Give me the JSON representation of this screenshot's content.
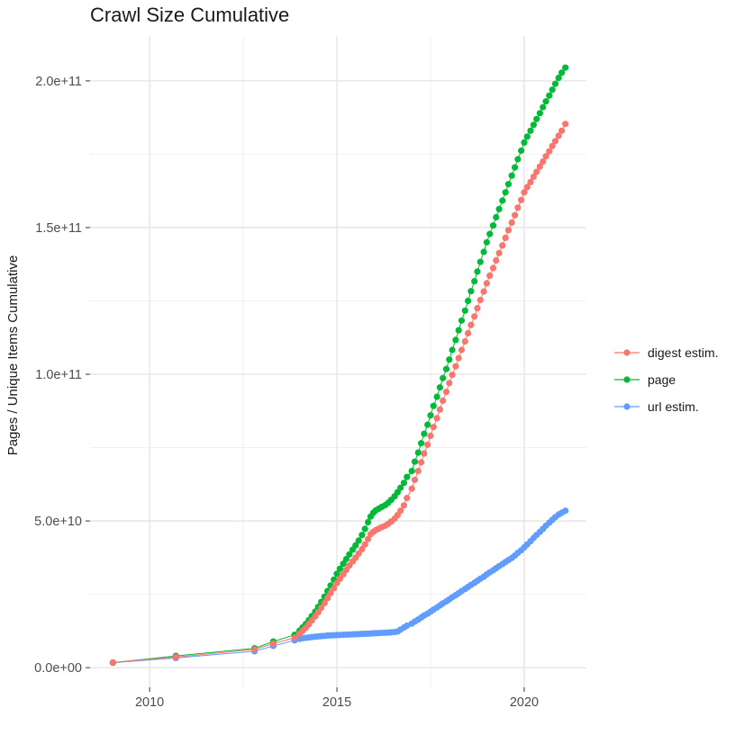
{
  "chart_data": {
    "type": "scatter",
    "title": "Crawl Size Cumulative",
    "xlabel": "",
    "ylabel": "Pages / Unique Items Cumulative",
    "x_unit": "year",
    "value_unit_note": "series point values are in billions (1e9); axis shows scientific notation",
    "xlim": [
      2008.41,
      2021.66
    ],
    "ylim_e9": [
      -6.7,
      215.3
    ],
    "grid": true,
    "background": "#FFFFFF",
    "grid_major_color": "#E4E4E4",
    "grid_minor_color": "#F0F0F0",
    "tick_color": "#333333",
    "axis_text_color": "#4D4D4D",
    "x_ticks": {
      "major": [
        2010,
        2015,
        2020
      ],
      "labels": [
        "2010",
        "2015",
        "2020"
      ],
      "minor": [
        2012.5,
        2017.5
      ]
    },
    "y_ticks": {
      "major_e9": [
        0,
        50,
        100,
        150,
        200
      ],
      "labels": [
        "0.0e+00",
        "5.0e+10",
        "1.0e+11",
        "1.5e+11",
        "2.0e+11"
      ],
      "minor_e9": [
        25,
        75,
        125,
        175
      ]
    },
    "legend": {
      "position": "right",
      "items": [
        {
          "label": "digest estim.",
          "color": "#F8766D"
        },
        {
          "label": "page",
          "color": "#00BA38"
        },
        {
          "label": "url estim.",
          "color": "#619CFF"
        }
      ]
    },
    "series": [
      {
        "name": "url estim.",
        "color": "#619CFF",
        "points": [
          [
            2009.02,
            1.7
          ],
          [
            2010.7,
            3.3
          ],
          [
            2012.8,
            5.6
          ],
          [
            2013.3,
            7.4
          ],
          [
            2013.87,
            9.3
          ],
          [
            2014.0,
            9.8
          ],
          [
            2014.08,
            10.0
          ],
          [
            2014.17,
            10.15
          ],
          [
            2014.25,
            10.3
          ],
          [
            2014.33,
            10.45
          ],
          [
            2014.42,
            10.55
          ],
          [
            2014.5,
            10.65
          ],
          [
            2014.58,
            10.75
          ],
          [
            2014.67,
            10.85
          ],
          [
            2014.75,
            10.95
          ],
          [
            2014.83,
            11.0
          ],
          [
            2014.92,
            11.05
          ],
          [
            2015.0,
            11.1
          ],
          [
            2015.08,
            11.15
          ],
          [
            2015.17,
            11.2
          ],
          [
            2015.25,
            11.25
          ],
          [
            2015.33,
            11.3
          ],
          [
            2015.42,
            11.35
          ],
          [
            2015.5,
            11.4
          ],
          [
            2015.58,
            11.45
          ],
          [
            2015.67,
            11.5
          ],
          [
            2015.75,
            11.55
          ],
          [
            2015.83,
            11.6
          ],
          [
            2015.9,
            11.65
          ],
          [
            2015.97,
            11.7
          ],
          [
            2016.04,
            11.75
          ],
          [
            2016.12,
            11.8
          ],
          [
            2016.2,
            11.85
          ],
          [
            2016.29,
            11.9
          ],
          [
            2016.37,
            11.95
          ],
          [
            2016.45,
            12.05
          ],
          [
            2016.54,
            12.15
          ],
          [
            2016.62,
            12.3
          ],
          [
            2016.7,
            13.0
          ],
          [
            2016.79,
            13.7
          ],
          [
            2016.87,
            14.3
          ],
          [
            2017.0,
            15.0
          ],
          [
            2017.08,
            15.7
          ],
          [
            2017.17,
            16.4
          ],
          [
            2017.25,
            17.1
          ],
          [
            2017.33,
            17.8
          ],
          [
            2017.42,
            18.4
          ],
          [
            2017.5,
            19.1
          ],
          [
            2017.58,
            19.8
          ],
          [
            2017.67,
            20.5
          ],
          [
            2017.75,
            21.2
          ],
          [
            2017.83,
            21.9
          ],
          [
            2017.92,
            22.6
          ],
          [
            2018.0,
            23.3
          ],
          [
            2018.08,
            24.0
          ],
          [
            2018.17,
            24.7
          ],
          [
            2018.25,
            25.4
          ],
          [
            2018.33,
            26.1
          ],
          [
            2018.42,
            26.8
          ],
          [
            2018.5,
            27.5
          ],
          [
            2018.58,
            28.2
          ],
          [
            2018.67,
            28.9
          ],
          [
            2018.75,
            29.6
          ],
          [
            2018.83,
            30.3
          ],
          [
            2018.92,
            31.0
          ],
          [
            2019.0,
            31.8
          ],
          [
            2019.08,
            32.5
          ],
          [
            2019.17,
            33.2
          ],
          [
            2019.25,
            33.9
          ],
          [
            2019.33,
            34.6
          ],
          [
            2019.42,
            35.3
          ],
          [
            2019.5,
            36.0
          ],
          [
            2019.58,
            36.7
          ],
          [
            2019.67,
            37.4
          ],
          [
            2019.75,
            38.2
          ],
          [
            2019.83,
            39.1
          ],
          [
            2019.92,
            40.0
          ],
          [
            2020.0,
            41.0
          ],
          [
            2020.08,
            42.0
          ],
          [
            2020.17,
            43.1
          ],
          [
            2020.25,
            44.2
          ],
          [
            2020.33,
            45.2
          ],
          [
            2020.42,
            46.3
          ],
          [
            2020.5,
            47.3
          ],
          [
            2020.58,
            48.4
          ],
          [
            2020.67,
            49.4
          ],
          [
            2020.75,
            50.4
          ],
          [
            2020.83,
            51.3
          ],
          [
            2020.92,
            52.2
          ],
          [
            2021.0,
            52.8
          ],
          [
            2021.1,
            53.5
          ]
        ]
      },
      {
        "name": "page",
        "color": "#00BA38",
        "points": [
          [
            2009.02,
            1.7
          ],
          [
            2010.7,
            4.0
          ],
          [
            2012.8,
            6.6
          ],
          [
            2013.3,
            8.9
          ],
          [
            2013.87,
            11.2
          ],
          [
            2014.0,
            12.6
          ],
          [
            2014.08,
            13.7
          ],
          [
            2014.17,
            14.9
          ],
          [
            2014.25,
            16.2
          ],
          [
            2014.33,
            17.6
          ],
          [
            2014.42,
            19.1
          ],
          [
            2014.5,
            20.7
          ],
          [
            2014.58,
            22.4
          ],
          [
            2014.67,
            24.2
          ],
          [
            2014.75,
            26.1
          ],
          [
            2014.83,
            28.0
          ],
          [
            2014.92,
            30.0
          ],
          [
            2015.0,
            32.0
          ],
          [
            2015.08,
            33.7
          ],
          [
            2015.17,
            35.4
          ],
          [
            2015.25,
            37.0
          ],
          [
            2015.33,
            38.6
          ],
          [
            2015.42,
            40.2
          ],
          [
            2015.5,
            41.7
          ],
          [
            2015.58,
            43.3
          ],
          [
            2015.67,
            45.2
          ],
          [
            2015.75,
            47.3
          ],
          [
            2015.83,
            49.6
          ],
          [
            2015.9,
            51.5
          ],
          [
            2015.97,
            52.8
          ],
          [
            2016.04,
            53.6
          ],
          [
            2016.12,
            54.2
          ],
          [
            2016.2,
            54.8
          ],
          [
            2016.29,
            55.4
          ],
          [
            2016.37,
            56.2
          ],
          [
            2016.45,
            57.2
          ],
          [
            2016.54,
            58.4
          ],
          [
            2016.62,
            59.8
          ],
          [
            2016.7,
            61.3
          ],
          [
            2016.79,
            63.0
          ],
          [
            2016.87,
            65.0
          ],
          [
            2017.0,
            67.0
          ],
          [
            2017.08,
            70.2
          ],
          [
            2017.17,
            73.3
          ],
          [
            2017.25,
            76.5
          ],
          [
            2017.33,
            79.7
          ],
          [
            2017.42,
            82.8
          ],
          [
            2017.5,
            86.0
          ],
          [
            2017.58,
            89.2
          ],
          [
            2017.67,
            92.3
          ],
          [
            2017.75,
            95.5
          ],
          [
            2017.83,
            98.7
          ],
          [
            2017.92,
            101.8
          ],
          [
            2018.0,
            105.0
          ],
          [
            2018.08,
            108.3
          ],
          [
            2018.17,
            111.7
          ],
          [
            2018.25,
            115.0
          ],
          [
            2018.33,
            118.3
          ],
          [
            2018.42,
            121.7
          ],
          [
            2018.5,
            125.0
          ],
          [
            2018.58,
            128.3
          ],
          [
            2018.67,
            131.7
          ],
          [
            2018.75,
            135.0
          ],
          [
            2018.83,
            138.3
          ],
          [
            2018.92,
            141.7
          ],
          [
            2019.0,
            145.0
          ],
          [
            2019.08,
            147.8
          ],
          [
            2019.17,
            150.7
          ],
          [
            2019.25,
            153.5
          ],
          [
            2019.33,
            156.3
          ],
          [
            2019.42,
            159.2
          ],
          [
            2019.5,
            162.0
          ],
          [
            2019.58,
            164.8
          ],
          [
            2019.67,
            167.7
          ],
          [
            2019.75,
            170.5
          ],
          [
            2019.83,
            173.3
          ],
          [
            2019.92,
            176.2
          ],
          [
            2020.0,
            179.0
          ],
          [
            2020.08,
            181.0
          ],
          [
            2020.17,
            183.0
          ],
          [
            2020.25,
            185.0
          ],
          [
            2020.33,
            187.0
          ],
          [
            2020.42,
            189.0
          ],
          [
            2020.5,
            191.0
          ],
          [
            2020.58,
            193.0
          ],
          [
            2020.67,
            195.0
          ],
          [
            2020.75,
            197.0
          ],
          [
            2020.83,
            199.0
          ],
          [
            2020.92,
            201.0
          ],
          [
            2021.0,
            202.8
          ],
          [
            2021.1,
            204.5
          ]
        ]
      },
      {
        "name": "digest estim.",
        "color": "#F8766D",
        "points": [
          [
            2009.02,
            1.8
          ],
          [
            2010.7,
            3.6
          ],
          [
            2012.8,
            6.2
          ],
          [
            2013.3,
            8.2
          ],
          [
            2013.87,
            10.2
          ],
          [
            2014.0,
            11.5
          ],
          [
            2014.08,
            12.5
          ],
          [
            2014.17,
            13.6
          ],
          [
            2014.25,
            14.8
          ],
          [
            2014.33,
            16.1
          ],
          [
            2014.42,
            17.5
          ],
          [
            2014.5,
            18.9
          ],
          [
            2014.58,
            20.4
          ],
          [
            2014.67,
            22.0
          ],
          [
            2014.75,
            23.7
          ],
          [
            2014.83,
            25.4
          ],
          [
            2014.92,
            27.1
          ],
          [
            2015.0,
            28.8
          ],
          [
            2015.08,
            30.3
          ],
          [
            2015.17,
            31.8
          ],
          [
            2015.25,
            33.3
          ],
          [
            2015.33,
            34.8
          ],
          [
            2015.42,
            36.2
          ],
          [
            2015.5,
            37.5
          ],
          [
            2015.58,
            38.9
          ],
          [
            2015.67,
            40.4
          ],
          [
            2015.75,
            42.0
          ],
          [
            2015.83,
            43.8
          ],
          [
            2015.9,
            45.5
          ],
          [
            2015.97,
            46.3
          ],
          [
            2016.04,
            46.9
          ],
          [
            2016.12,
            47.4
          ],
          [
            2016.2,
            47.9
          ],
          [
            2016.29,
            48.4
          ],
          [
            2016.37,
            49.0
          ],
          [
            2016.45,
            49.8
          ],
          [
            2016.54,
            50.8
          ],
          [
            2016.62,
            52.0
          ],
          [
            2016.7,
            53.5
          ],
          [
            2016.79,
            55.3
          ],
          [
            2016.87,
            57.8
          ],
          [
            2017.0,
            61.0
          ],
          [
            2017.08,
            64.0
          ],
          [
            2017.17,
            67.0
          ],
          [
            2017.25,
            70.0
          ],
          [
            2017.33,
            73.0
          ],
          [
            2017.42,
            76.0
          ],
          [
            2017.5,
            79.0
          ],
          [
            2017.58,
            82.0
          ],
          [
            2017.67,
            85.0
          ],
          [
            2017.75,
            88.0
          ],
          [
            2017.83,
            91.0
          ],
          [
            2017.92,
            94.0
          ],
          [
            2018.0,
            97.0
          ],
          [
            2018.08,
            99.8
          ],
          [
            2018.17,
            102.7
          ],
          [
            2018.25,
            105.5
          ],
          [
            2018.33,
            108.3
          ],
          [
            2018.42,
            111.2
          ],
          [
            2018.5,
            114.0
          ],
          [
            2018.58,
            116.8
          ],
          [
            2018.67,
            119.7
          ],
          [
            2018.75,
            122.5
          ],
          [
            2018.83,
            125.3
          ],
          [
            2018.92,
            128.2
          ],
          [
            2019.0,
            131.0
          ],
          [
            2019.08,
            133.6
          ],
          [
            2019.17,
            136.2
          ],
          [
            2019.25,
            138.8
          ],
          [
            2019.33,
            141.3
          ],
          [
            2019.42,
            143.9
          ],
          [
            2019.5,
            146.5
          ],
          [
            2019.58,
            149.1
          ],
          [
            2019.67,
            151.7
          ],
          [
            2019.75,
            154.2
          ],
          [
            2019.83,
            156.8
          ],
          [
            2019.92,
            159.4
          ],
          [
            2020.0,
            162.0
          ],
          [
            2020.08,
            163.8
          ],
          [
            2020.17,
            165.5
          ],
          [
            2020.25,
            167.3
          ],
          [
            2020.33,
            169.0
          ],
          [
            2020.42,
            170.8
          ],
          [
            2020.5,
            172.5
          ],
          [
            2020.58,
            174.3
          ],
          [
            2020.67,
            176.0
          ],
          [
            2020.75,
            177.8
          ],
          [
            2020.83,
            179.5
          ],
          [
            2020.92,
            181.3
          ],
          [
            2021.0,
            183.0
          ],
          [
            2021.1,
            185.3
          ]
        ]
      }
    ]
  }
}
